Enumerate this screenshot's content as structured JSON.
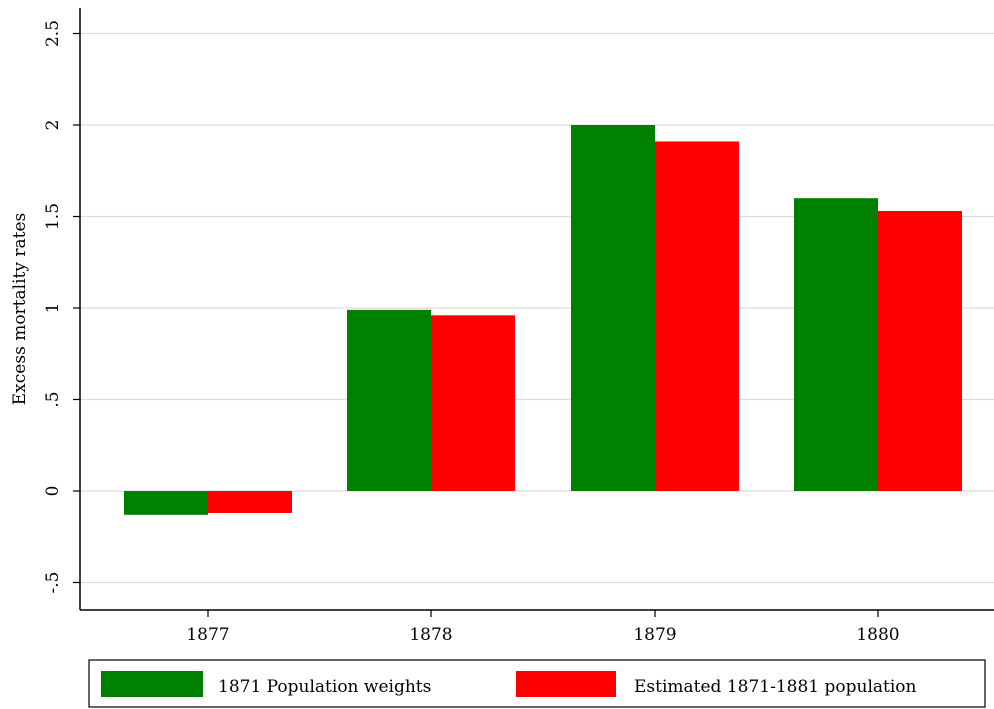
{
  "chart_data": {
    "type": "bar",
    "title": "",
    "xlabel": "",
    "ylabel": "Excess mortality rates",
    "categories": [
      "1877",
      "1878",
      "1879",
      "1880"
    ],
    "series": [
      {
        "name": "1871 Population weights",
        "color": "#008000",
        "values": [
          -0.13,
          0.99,
          2.0,
          1.6
        ]
      },
      {
        "name": "Estimated 1871-1881 population",
        "color": "#ff0000",
        "values": [
          -0.12,
          0.96,
          1.91,
          1.53
        ]
      }
    ],
    "yticks": [
      "-.5",
      "0",
      ".5",
      "1",
      "1.5",
      "2",
      "2.5"
    ],
    "ylim": [
      -0.65,
      2.65
    ],
    "grid": true,
    "legend_position": "bottom"
  }
}
